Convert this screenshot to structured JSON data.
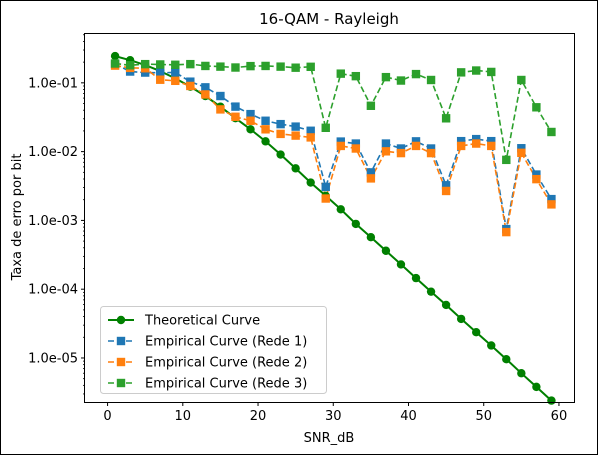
{
  "chart_data": {
    "type": "line",
    "title": "16-QAM - Rayleigh",
    "xlabel": "SNR_dB",
    "ylabel": "Taxa de erro por bit",
    "xlim": [
      -3,
      62
    ],
    "ylim_log10": [
      -5.64,
      -0.29
    ],
    "y_scale": "log",
    "x_ticks": [
      0,
      10,
      20,
      30,
      40,
      50,
      60
    ],
    "x_tick_labels": [
      "0",
      "10",
      "20",
      "30",
      "40",
      "50",
      "60"
    ],
    "y_ticks_log10": [
      -1,
      -2,
      -3,
      -4,
      -5
    ],
    "y_tick_labels": [
      "1.0e-01",
      "1.0e-02",
      "1.0e-03",
      "1.0e-04",
      "1.0e-05"
    ],
    "grid": false,
    "legend_position": "lower-left",
    "x": [
      1,
      3,
      5,
      7,
      9,
      11,
      13,
      15,
      17,
      19,
      21,
      23,
      25,
      27,
      29,
      31,
      33,
      35,
      37,
      39,
      41,
      43,
      45,
      47,
      49,
      51,
      53,
      55,
      57,
      59
    ],
    "series": [
      {
        "name": "Theoretical Curve",
        "color": "#008000",
        "linestyle": "solid",
        "marker": "circle",
        "values": [
          0.245,
          0.213,
          0.181,
          0.148,
          0.116,
          0.0881,
          0.0643,
          0.045,
          0.0306,
          0.0211,
          0.0141,
          0.00907,
          0.00571,
          0.00355,
          0.00228,
          0.00145,
          0.00089,
          0.00057,
          0.000362,
          0.000229,
          0.000145,
          9.2e-05,
          5.9e-05,
          3.7e-05,
          2.37e-05,
          1.52e-05,
          9.6e-06,
          6e-06,
          3.8e-06,
          2.4e-06
        ]
      },
      {
        "name": "Empirical Curve (Rede 1)",
        "color": "#1f77b4",
        "linestyle": "dashed",
        "marker": "square",
        "values": [
          0.188,
          0.146,
          0.141,
          0.14,
          0.142,
          0.104,
          0.086,
          0.0643,
          0.0451,
          0.0351,
          0.0281,
          0.0251,
          0.0231,
          0.0201,
          0.00307,
          0.014,
          0.0131,
          0.00499,
          0.0131,
          0.0111,
          0.0141,
          0.0111,
          0.00324,
          0.0142,
          0.0152,
          0.0142,
          0.000748,
          0.0112,
          0.00464,
          0.00204
        ]
      },
      {
        "name": "Empirical Curve (Rede 2)",
        "color": "#ff7f0e",
        "linestyle": "dashed",
        "marker": "square",
        "values": [
          0.178,
          0.165,
          0.163,
          0.111,
          0.107,
          0.0901,
          0.0678,
          0.0411,
          0.0321,
          0.0281,
          0.0211,
          0.0181,
          0.0171,
          0.0161,
          0.00208,
          0.0121,
          0.0111,
          0.00408,
          0.0101,
          0.00952,
          0.0121,
          0.00952,
          0.00268,
          0.0121,
          0.0131,
          0.0121,
          0.000676,
          0.00961,
          0.00398,
          0.00171
        ]
      },
      {
        "name": "Empirical Curve (Rede 3)",
        "color": "#2ca02c",
        "linestyle": "dashed",
        "marker": "square",
        "values": [
          0.191,
          0.18,
          0.187,
          0.185,
          0.183,
          0.187,
          0.176,
          0.172,
          0.167,
          0.175,
          0.176,
          0.172,
          0.166,
          0.171,
          0.0222,
          0.136,
          0.125,
          0.0464,
          0.121,
          0.108,
          0.134,
          0.11,
          0.0305,
          0.142,
          0.151,
          0.144,
          0.00759,
          0.11,
          0.0441,
          0.0193
        ]
      }
    ]
  }
}
